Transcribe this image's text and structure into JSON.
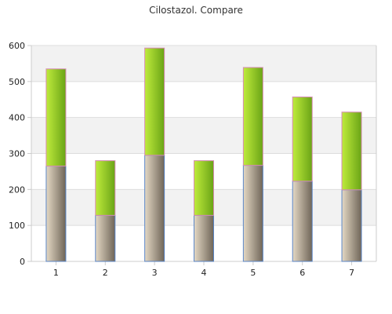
{
  "chart_data": {
    "type": "bar",
    "stacked": true,
    "title": "Cilostazol. Compare",
    "xlabel": "",
    "ylabel": "",
    "categories": [
      "1",
      "2",
      "3",
      "4",
      "5",
      "6",
      "7"
    ],
    "series": [
      {
        "values": [
          265,
          128,
          295,
          128,
          267,
          223,
          199
        ]
      },
      {
        "values": [
          270,
          152,
          298,
          152,
          272,
          234,
          216
        ]
      }
    ],
    "totals": [
      535,
      280,
      593,
      280,
      539,
      457,
      415
    ],
    "ylim": [
      0,
      600
    ],
    "yticks": [
      0,
      100,
      200,
      300,
      400,
      500,
      600
    ],
    "grid": true,
    "legend": "none",
    "colors": {
      "bottom_light": "#e4d8c4",
      "bottom_dark": "#6f6558",
      "bottom_outline": "#5b86c6",
      "top_light": "#bfeb3c",
      "top_dark": "#6aa416",
      "top_outline": "#d58bb3",
      "band": "#f2f2f2",
      "axis": "#cccccc",
      "grid": "#dddddd"
    }
  }
}
